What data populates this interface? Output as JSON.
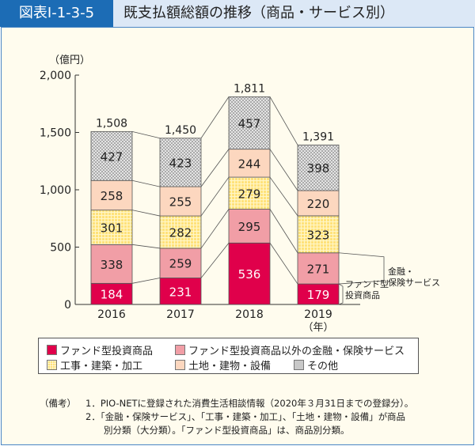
{
  "header": {
    "figure_id": "図表Ⅰ-1-3-5",
    "title": "既支払額総額の推移（商品・サービス別）"
  },
  "chart_data": {
    "type": "bar",
    "stacked": true,
    "title": "既支払額総額の推移（商品・サービス別）",
    "ylabel": "（億円）",
    "xlabel": "（年）",
    "ylim": [
      0,
      2000
    ],
    "yticks": [
      "0",
      "500",
      "1,000",
      "1,500",
      "2,000"
    ],
    "ytick_values": [
      0,
      500,
      1000,
      1500,
      2000
    ],
    "categories": [
      "2016",
      "2017",
      "2018",
      "2019"
    ],
    "totals": [
      "1,508",
      "1,450",
      "1,811",
      "1,391"
    ],
    "total_values": [
      1508,
      1450,
      1811,
      1391
    ],
    "series": [
      {
        "name": "ファンド型投資商品",
        "values": [
          184,
          231,
          536,
          179
        ],
        "color": "#e0004b",
        "label_color": "#ffffff"
      },
      {
        "name": "ファンド型投資商品以外の金融・保険サービス",
        "values": [
          338,
          259,
          295,
          271
        ],
        "color": "#f19ea6",
        "label_color": "#222222"
      },
      {
        "name": "工事・建築・加工",
        "values": [
          301,
          282,
          279,
          323
        ],
        "color": "#ffe27a",
        "pattern": "grid",
        "label_color": "#222222"
      },
      {
        "name": "土地・建物・設備",
        "values": [
          258,
          255,
          244,
          220
        ],
        "color": "#fcd7bf",
        "label_color": "#222222"
      },
      {
        "name": "その他",
        "values": [
          427,
          423,
          457,
          398
        ],
        "color": "#c8c8c8",
        "pattern": "checker",
        "label_color": "#222222"
      }
    ],
    "annotations": {
      "fund": "ファンド型|投資商品",
      "finance": "金融・|保険サービス"
    },
    "legend_position": "bottom",
    "grid": false
  },
  "notes": {
    "label": "（備考）",
    "items": [
      "1．PIO-NETに登録された消費生活相談情報（2020年３月31日までの登録分）。",
      "2．「金融・保険サービス」、「工事・建築・加工」、「土地・建物・設備」が商品",
      "　　別分類（大分類）。「ファンド型投資商品」は、商品別分類。"
    ]
  }
}
